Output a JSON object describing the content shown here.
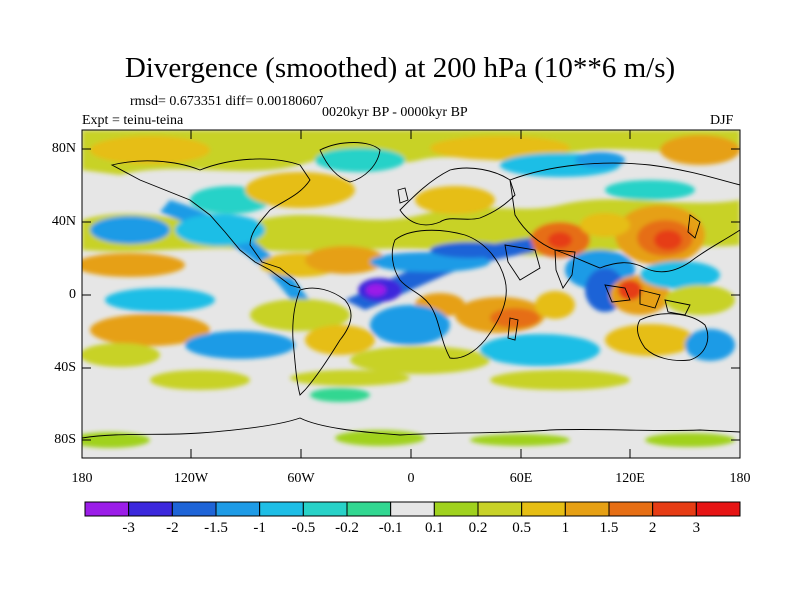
{
  "title": "Divergence (smoothed) at 200 hPa (10**6 m/s)",
  "stats": "rmsd= 0.673351 diff= 0.00180607",
  "period": "0020kyr BP - 0000kyr BP",
  "experiment": "Expt = teinu-teina",
  "season": "DJF",
  "y_ticks": [
    "80N",
    "40N",
    "0",
    "40S",
    "80S"
  ],
  "x_ticks": [
    "180",
    "120W",
    "60W",
    "0",
    "60E",
    "120E",
    "180"
  ],
  "colorbar": {
    "labels": [
      "-3",
      "-2",
      "-1.5",
      "-1",
      "-0.5",
      "-0.2",
      "-0.1",
      "0.1",
      "0.2",
      "0.5",
      "1",
      "1.5",
      "2",
      "3"
    ],
    "colors": [
      "#9b1de8",
      "#3c28dc",
      "#1e64d7",
      "#1e9be6",
      "#1ebee6",
      "#28d2c8",
      "#32d791",
      "#e6e6e6",
      "#a0d21e",
      "#c8d228",
      "#e6be14",
      "#e6a014",
      "#e66e14",
      "#e63c14",
      "#e61414"
    ]
  }
}
